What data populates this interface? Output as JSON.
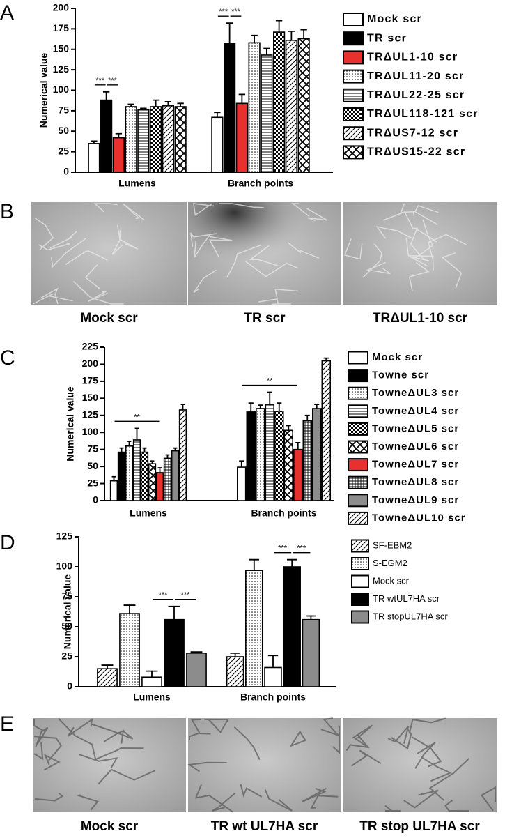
{
  "chart_data": [
    {
      "type": "bar",
      "label": "A",
      "ylabel": "Numerical value",
      "categories": [
        "Lumens",
        "Branch points"
      ],
      "ylim": [
        0,
        200
      ],
      "yticks": [
        0,
        25,
        50,
        75,
        100,
        125,
        150,
        175,
        200
      ],
      "series": [
        {
          "name": "Mock scr",
          "color": "#ffffff",
          "values": [
            35,
            67
          ],
          "errors": [
            3,
            6
          ]
        },
        {
          "name": "TR scr",
          "color": "#000000",
          "values": [
            88,
            157
          ],
          "errors": [
            10,
            25
          ]
        },
        {
          "name": "TRΔUL1-10 scr",
          "color": "#e8312f",
          "values": [
            42,
            84
          ],
          "errors": [
            5,
            11
          ]
        },
        {
          "name": "TRΔUL11-20 scr",
          "pattern": "dots",
          "values": [
            80,
            158
          ],
          "errors": [
            3,
            9
          ]
        },
        {
          "name": "TRΔUL22-25 scr",
          "pattern": "hlines",
          "values": [
            76,
            143
          ],
          "errors": [
            2,
            8
          ]
        },
        {
          "name": "TRΔUL118-121 scr",
          "pattern": "checker",
          "values": [
            80,
            171
          ],
          "errors": [
            8,
            14
          ]
        },
        {
          "name": "TRΔUS7-12 scr",
          "pattern": "diag",
          "values": [
            81,
            161
          ],
          "errors": [
            5,
            11
          ]
        },
        {
          "name": "TRΔUS15-22 scr",
          "pattern": "cross",
          "values": [
            80,
            163
          ],
          "errors": [
            4,
            11
          ]
        }
      ],
      "annotations": [
        {
          "text": "***",
          "category": 0,
          "from": 0,
          "to": 1
        },
        {
          "text": "***",
          "category": 0,
          "from": 1,
          "to": 2
        },
        {
          "text": "***",
          "category": 1,
          "from": 0,
          "to": 1
        },
        {
          "text": "***",
          "category": 1,
          "from": 1,
          "to": 2
        }
      ]
    },
    {
      "type": "bar",
      "label": "C",
      "ylabel": "Numerical value",
      "categories": [
        "Lumens",
        "Branch points"
      ],
      "ylim": [
        0,
        225
      ],
      "yticks": [
        0,
        25,
        50,
        75,
        100,
        125,
        150,
        175,
        200,
        225
      ],
      "series": [
        {
          "name": "Mock scr",
          "color": "#ffffff",
          "values": [
            29,
            49
          ],
          "errors": [
            6,
            9
          ]
        },
        {
          "name": "Towne scr",
          "color": "#000000",
          "values": [
            71,
            130
          ],
          "errors": [
            6,
            13
          ]
        },
        {
          "name": "TowneΔUL3 scr",
          "pattern": "dots",
          "values": [
            80,
            135
          ],
          "errors": [
            7,
            5
          ]
        },
        {
          "name": "TowneΔUL4 scr",
          "pattern": "hlines",
          "values": [
            89,
            141
          ],
          "errors": [
            17,
            18
          ]
        },
        {
          "name": "TowneΔUL5 scr",
          "pattern": "checker",
          "values": [
            71,
            131
          ],
          "errors": [
            6,
            12
          ]
        },
        {
          "name": "TowneΔUL6 scr",
          "pattern": "cross",
          "values": [
            54,
            103
          ],
          "errors": [
            4,
            7
          ]
        },
        {
          "name": "TowneΔUL7 scr",
          "color": "#e8312f",
          "values": [
            41,
            75
          ],
          "errors": [
            7,
            10
          ]
        },
        {
          "name": "TowneΔUL8 scr",
          "pattern": "grid",
          "values": [
            62,
            117
          ],
          "errors": [
            5,
            8
          ]
        },
        {
          "name": "TowneΔUL9 scr",
          "color": "#8c8c8c",
          "values": [
            73,
            135
          ],
          "errors": [
            4,
            6
          ]
        },
        {
          "name": "TowneΔUL10 scr",
          "pattern": "diag",
          "values": [
            133,
            205
          ],
          "errors": [
            8,
            4
          ]
        }
      ],
      "annotations": [
        {
          "text": "**",
          "category": 0,
          "from": 0,
          "to": 6
        },
        {
          "text": "**",
          "category": 1,
          "from": 0,
          "to": 6
        }
      ]
    },
    {
      "type": "bar",
      "label": "D",
      "ylabel": "Numerical value",
      "categories": [
        "Lumens",
        "Branch points"
      ],
      "ylim": [
        0,
        125
      ],
      "yticks": [
        0,
        25,
        50,
        75,
        100,
        125
      ],
      "series": [
        {
          "name": "SF-EBM2",
          "pattern": "diag",
          "values": [
            15,
            25
          ],
          "errors": [
            3,
            3
          ]
        },
        {
          "name": "S-EGM2",
          "pattern": "dots",
          "values": [
            61,
            97
          ],
          "errors": [
            7,
            9
          ]
        },
        {
          "name": "Mock scr",
          "color": "#ffffff",
          "values": [
            8,
            16
          ],
          "errors": [
            5,
            10
          ]
        },
        {
          "name": "TR wtUL7HA scr",
          "color": "#000000",
          "values": [
            56,
            100
          ],
          "errors": [
            11,
            6
          ]
        },
        {
          "name": "TR stopUL7HA scr",
          "color": "#8c8c8c",
          "values": [
            28,
            56
          ],
          "errors": [
            1,
            3
          ]
        }
      ],
      "annotations": [
        {
          "text": "***",
          "category": 0,
          "from": 2,
          "to": 3
        },
        {
          "text": "***",
          "category": 0,
          "from": 3,
          "to": 4
        },
        {
          "text": "***",
          "category": 1,
          "from": 2,
          "to": 3
        },
        {
          "text": "***",
          "category": 1,
          "from": 3,
          "to": 4
        }
      ]
    }
  ],
  "image_panels": [
    {
      "label": "B",
      "captions": [
        "Mock scr",
        "TR scr",
        "TRΔUL1-10 scr"
      ]
    },
    {
      "label": "E",
      "captions": [
        "Mock scr",
        "TR wt UL7HA scr",
        "TR stop UL7HA scr"
      ]
    }
  ]
}
